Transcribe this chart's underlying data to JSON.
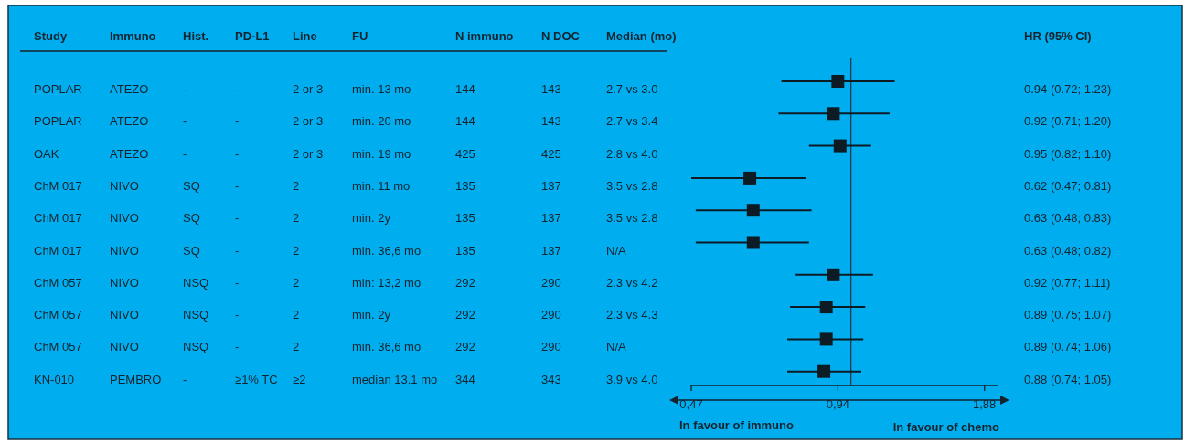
{
  "chart_data": [
    {
      "type": "other",
      "categories": [
        "Study",
        "Immuno",
        "Hist.",
        "PD-L1",
        "Line",
        "FU",
        "N immuno",
        "N DOC",
        "Median (mo)",
        "HR (95% CI)"
      ],
      "cell_labels": [
        [
          "POPLAR",
          "ATEZO",
          "-",
          "-",
          "2 or 3",
          "min. 13 mo",
          "144",
          "143",
          "2.7 vs 3.0"
        ],
        [
          "POPLAR",
          "ATEZO",
          "-",
          "-",
          "2 or 3",
          "min. 20 mo",
          "144",
          "143",
          "2.7 vs 3.4"
        ],
        [
          "OAK",
          "ATEZO",
          "-",
          "-",
          "2 or 3",
          "min. 19 mo",
          "425",
          "425",
          "2.8 vs 4.0"
        ],
        [
          "ChM 017",
          "NIVO",
          "SQ",
          "-",
          "2",
          "min. 11 mo",
          "135",
          "137",
          "3.5 vs 2.8"
        ],
        [
          "ChM 017",
          "NIVO",
          "SQ",
          "-",
          "2",
          "min. 2y",
          "135",
          "137",
          "3.5 vs 2.8"
        ],
        [
          "ChM 017",
          "NIVO",
          "SQ",
          "-",
          "2",
          "min. 36,6 mo",
          "135",
          "137",
          "N/A"
        ],
        [
          "ChM 057",
          "NIVO",
          "NSQ",
          "-",
          "2",
          "min: 13,2 mo",
          "292",
          "290",
          "2.3 vs 4.2"
        ],
        [
          "ChM 057",
          "NIVO",
          "NSQ",
          "-",
          "2",
          "min. 2y",
          "292",
          "290",
          "2.3 vs 4.3"
        ],
        [
          "ChM 057",
          "NIVO",
          "NSQ",
          "-",
          "2",
          "min. 36,6 mo",
          "292",
          "290",
          "N/A"
        ],
        [
          "KN-010",
          "PEMBRO",
          "-",
          "≥1% TC",
          "≥2",
          "median 13.1 mo",
          "344",
          "343",
          "3.9 vs 4.0"
        ]
      ]
    },
    {
      "type": "scatter",
      "orientation": "horizontal",
      "log": "x",
      "marker": "square",
      "color": "#0d1b24",
      "categories": [
        null,
        null,
        null,
        null,
        null,
        null,
        null,
        null,
        null,
        null
      ],
      "values": [
        0.94,
        0.92,
        0.95,
        0.62,
        0.63,
        0.63,
        0.92,
        0.89,
        0.89,
        0.88
      ],
      "errors": [
        [
          0.72,
          1.23
        ],
        [
          0.71,
          1.2
        ],
        [
          0.82,
          1.1
        ],
        [
          0.47,
          0.81
        ],
        [
          0.48,
          0.83
        ],
        [
          0.48,
          0.82
        ],
        [
          0.77,
          1.11
        ],
        [
          0.75,
          1.07
        ],
        [
          0.74,
          1.06
        ],
        [
          0.74,
          1.05
        ]
      ],
      "value_labels": [
        "0.94 (0.72; 1.23)",
        "0.92 (0.71; 1.20)",
        "0.95 (0.82; 1.10)",
        "0.62 (0.47; 0.81)",
        "0.63 (0.48; 0.83)",
        "0.63 (0.48; 0.82)",
        "0.92 (0.77; 1.11)",
        "0.89 (0.75; 1.07)",
        "0.89 (0.74; 1.06)",
        "0.88 (0.74; 1.05)"
      ],
      "xlim": [
        0.47,
        2.0
      ],
      "xticks": [
        {
          "value": 0.47,
          "label": "0,47"
        },
        {
          "value": 0.94,
          "label": "0,94"
        },
        {
          "value": 1.88,
          "label": "1,88"
        }
      ],
      "ref_lines": [
        {
          "axis": "x",
          "value": 1,
          "color": "#1f3a48"
        }
      ],
      "annotations": [
        "In favour of immuno",
        "In favour of chemo"
      ]
    }
  ]
}
